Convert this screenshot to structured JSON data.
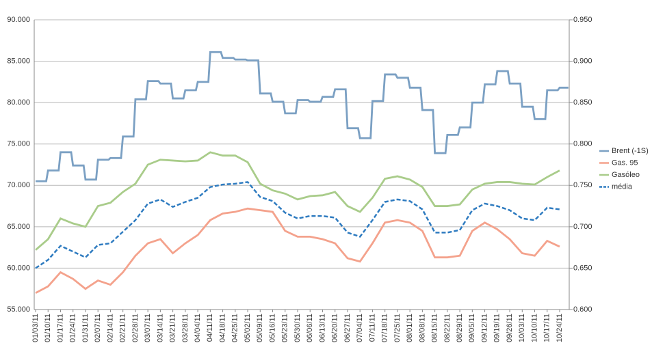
{
  "chart_data": {
    "type": "line",
    "categories": [
      "01/03/11",
      "01/10/11",
      "01/17/11",
      "01/24/11",
      "01/31/11",
      "02/07/11",
      "02/14/11",
      "02/21/11",
      "02/28/11",
      "03/07/11",
      "03/14/11",
      "03/21/11",
      "03/28/11",
      "04/04/11",
      "04/11/11",
      "04/18/11",
      "04/25/11",
      "05/02/11",
      "05/09/11",
      "05/16/11",
      "05/23/11",
      "05/30/11",
      "06/06/11",
      "06/13/11",
      "06/20/11",
      "06/27/11",
      "07/04/11",
      "07/11/11",
      "07/18/11",
      "07/25/11",
      "08/01/11",
      "08/08/11",
      "08/15/11",
      "08/22/11",
      "08/29/11",
      "09/05/11",
      "09/12/11",
      "09/19/11",
      "09/26/11",
      "10/03/11",
      "10/10/11",
      "10/17/11",
      "10/24/11"
    ],
    "series": [
      {
        "name": "Brent (-1S)",
        "color": "#7ba0c3",
        "step": true,
        "values": [
          70.5,
          71.8,
          74.0,
          72.4,
          70.7,
          73.1,
          73.3,
          75.9,
          80.4,
          82.6,
          82.3,
          80.5,
          81.5,
          82.5,
          86.1,
          85.4,
          85.2,
          85.1,
          81.1,
          80.1,
          78.7,
          80.3,
          80.1,
          80.7,
          81.6,
          76.9,
          75.7,
          80.2,
          83.4,
          83.0,
          81.8,
          79.1,
          73.9,
          76.1,
          77.0,
          80.0,
          82.2,
          83.8,
          82.3,
          79.5,
          78.0,
          81.5,
          81.8
        ]
      },
      {
        "name": "Gas. 95",
        "color": "#f4a28c",
        "axis": "y2",
        "values": [
          0.62,
          0.628,
          0.645,
          0.637,
          0.625,
          0.635,
          0.63,
          0.645,
          0.665,
          0.68,
          0.685,
          0.668,
          0.68,
          0.69,
          0.708,
          0.716,
          0.718,
          0.722,
          0.72,
          0.718,
          0.695,
          0.688,
          0.688,
          0.685,
          0.68,
          0.662,
          0.658,
          0.68,
          0.705,
          0.708,
          0.705,
          0.695,
          0.663,
          0.663,
          0.665,
          0.695,
          0.705,
          0.697,
          0.685,
          0.668,
          0.665,
          0.683,
          0.676
        ]
      },
      {
        "name": "Gasóleo",
        "color": "#a9cc8a",
        "axis": "y2",
        "values": [
          0.672,
          0.685,
          0.71,
          0.704,
          0.7,
          0.725,
          0.729,
          0.742,
          0.752,
          0.775,
          0.781,
          0.78,
          0.779,
          0.78,
          0.79,
          0.786,
          0.786,
          0.778,
          0.752,
          0.744,
          0.74,
          0.733,
          0.737,
          0.738,
          0.742,
          0.725,
          0.718,
          0.735,
          0.758,
          0.761,
          0.757,
          0.748,
          0.725,
          0.725,
          0.727,
          0.745,
          0.752,
          0.754,
          0.754,
          0.752,
          0.751,
          0.76,
          0.768
        ]
      },
      {
        "name": "média",
        "color": "#2e7bc0",
        "axis": "y2",
        "dash": true,
        "values": [
          0.65,
          0.66,
          0.677,
          0.67,
          0.663,
          0.678,
          0.68,
          0.694,
          0.708,
          0.728,
          0.733,
          0.724,
          0.73,
          0.735,
          0.748,
          0.751,
          0.752,
          0.754,
          0.736,
          0.731,
          0.717,
          0.71,
          0.713,
          0.713,
          0.711,
          0.693,
          0.688,
          0.708,
          0.73,
          0.733,
          0.731,
          0.721,
          0.693,
          0.693,
          0.696,
          0.72,
          0.728,
          0.725,
          0.72,
          0.71,
          0.708,
          0.723,
          0.721
        ]
      }
    ],
    "ylim": [
      55,
      90
    ],
    "yticks": [
      {
        "value": 55,
        "label": "55.000"
      },
      {
        "value": 60,
        "label": "60.000"
      },
      {
        "value": 65,
        "label": "65.000"
      },
      {
        "value": 70,
        "label": "70.000"
      },
      {
        "value": 75,
        "label": "75.000"
      },
      {
        "value": 80,
        "label": "80.000"
      },
      {
        "value": 85,
        "label": "85.000"
      },
      {
        "value": 90,
        "label": "90.000"
      }
    ],
    "y2lim": [
      0.6,
      0.95
    ],
    "y2ticks": [
      {
        "value": 0.6,
        "label": "0.600"
      },
      {
        "value": 0.65,
        "label": "0.650"
      },
      {
        "value": 0.7,
        "label": "0.700"
      },
      {
        "value": 0.75,
        "label": "0.750"
      },
      {
        "value": 0.8,
        "label": "0.800"
      },
      {
        "value": 0.85,
        "label": "0.850"
      },
      {
        "value": 0.9,
        "label": "0.900"
      },
      {
        "value": 0.95,
        "label": "0.950"
      }
    ],
    "grid": true,
    "legend": "right"
  }
}
